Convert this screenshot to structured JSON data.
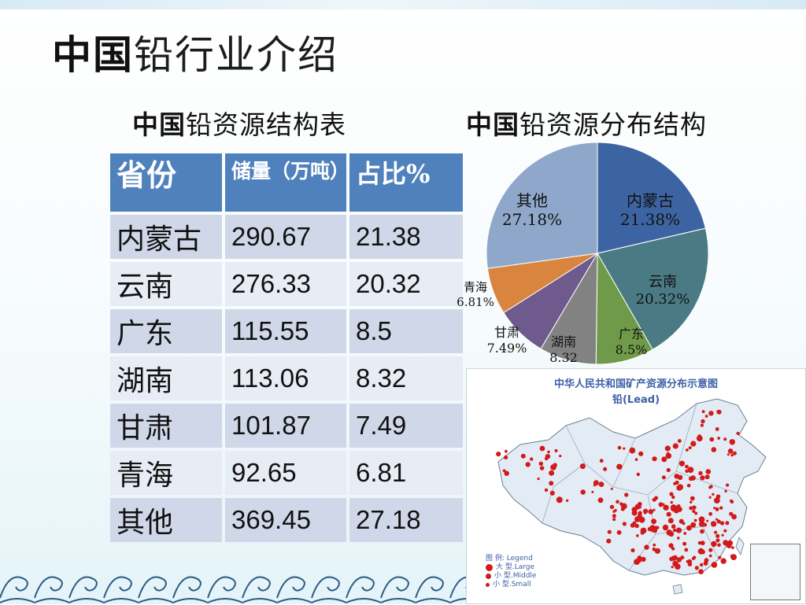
{
  "slide": {
    "title_bold": "中国",
    "title_rest": "铅行业介绍"
  },
  "table_section": {
    "title_bold": "中国",
    "title_rest": "铅资源结构表",
    "headers": [
      "省份",
      "储量（万吨）",
      "占比%"
    ],
    "rows": [
      {
        "province": "内蒙古",
        "reserve": "290.67",
        "share": "21.38"
      },
      {
        "province": "云南",
        "reserve": "276.33",
        "share": "20.32"
      },
      {
        "province": "广东",
        "reserve": "115.55",
        "share": "8.5"
      },
      {
        "province": "湖南",
        "reserve": "113.06",
        "share": "8.32"
      },
      {
        "province": "甘肃",
        "reserve": "101.87",
        "share": "7.49"
      },
      {
        "province": "青海",
        "reserve": "92.65",
        "share": "6.81"
      },
      {
        "province": "其他",
        "reserve": "369.45",
        "share": "27.18"
      }
    ]
  },
  "pie_section": {
    "title_bold": "中国",
    "title_rest": "铅资源分布结构"
  },
  "chart_data": {
    "type": "pie",
    "title": "中国铅资源分布结构",
    "slices": [
      {
        "name": "内蒙古",
        "value": 21.38,
        "label": "21.38%",
        "color": "#3d64a2"
      },
      {
        "name": "云南",
        "value": 20.32,
        "label": "20.32%",
        "color": "#4a7a84"
      },
      {
        "name": "广东",
        "value": 8.5,
        "label": "8.5%",
        "color": "#6f9a4a"
      },
      {
        "name": "湖南",
        "value": 8.32,
        "label": "8.32",
        "color": "#828282"
      },
      {
        "name": "甘肃",
        "value": 7.49,
        "label": "7.49%",
        "color": "#6e5a8c"
      },
      {
        "name": "青海",
        "value": 6.81,
        "label": "6.81%",
        "color": "#d9853f"
      },
      {
        "name": "其他",
        "value": 27.18,
        "label": "27.18%",
        "color": "#8fa7ca"
      }
    ],
    "start": "12 o'clock",
    "direction": "clockwise"
  },
  "map": {
    "title": "中华人民共和国矿产资源分布示意图",
    "subtitle": "铅(Lead)",
    "legend_title": "图 例: Legend",
    "legend_items": [
      "大 型.Large",
      "小 型.Middle",
      "小 型.Small"
    ],
    "dot_color": "#d2191c"
  }
}
